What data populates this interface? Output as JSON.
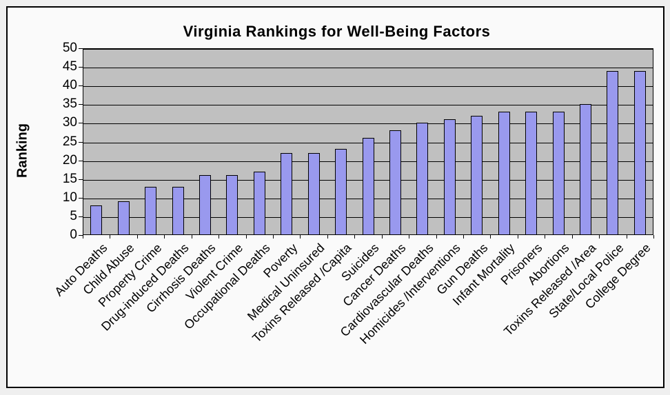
{
  "window": {
    "outer_background": "#efefef",
    "frame_background": "#fafafa",
    "frame_border_color": "#000000"
  },
  "chart_data": {
    "type": "bar",
    "title": "Virginia Rankings for Well-Being Factors",
    "xlabel": "",
    "ylabel": "Ranking",
    "categories": [
      "Auto Deaths",
      "Child Abuse",
      "Property Crime",
      "Drug-induced Deaths",
      "Cirrhosis Deaths",
      "Violent Crime",
      "Occupational Deaths",
      "Poverty",
      "Medical Uninsured",
      "Toxins Released /Capita",
      "Suicides",
      "Cancer Deaths",
      "Cardiovascular Deaths",
      "Homicides /Interventions",
      "Gun Deaths",
      "Infant Mortality",
      "Prisoners",
      "Abortions",
      "Toxins Released /Area",
      "State/Local Police",
      "College Degree"
    ],
    "values": [
      8,
      9,
      13,
      13,
      16,
      16,
      17,
      22,
      22,
      23,
      26,
      28,
      30,
      31,
      32,
      33,
      33,
      33,
      35,
      44,
      44
    ],
    "ylim": [
      0,
      50
    ],
    "ytick_step": 5,
    "grid": "horizontal-on",
    "legend": "none",
    "label_rotation_deg": 45,
    "bar_color": "#9999ee",
    "bar_border_color": "#000000",
    "plot_background_color": "#c0c0c0",
    "gridline_color": "#000000",
    "text_color": "#000000"
  }
}
